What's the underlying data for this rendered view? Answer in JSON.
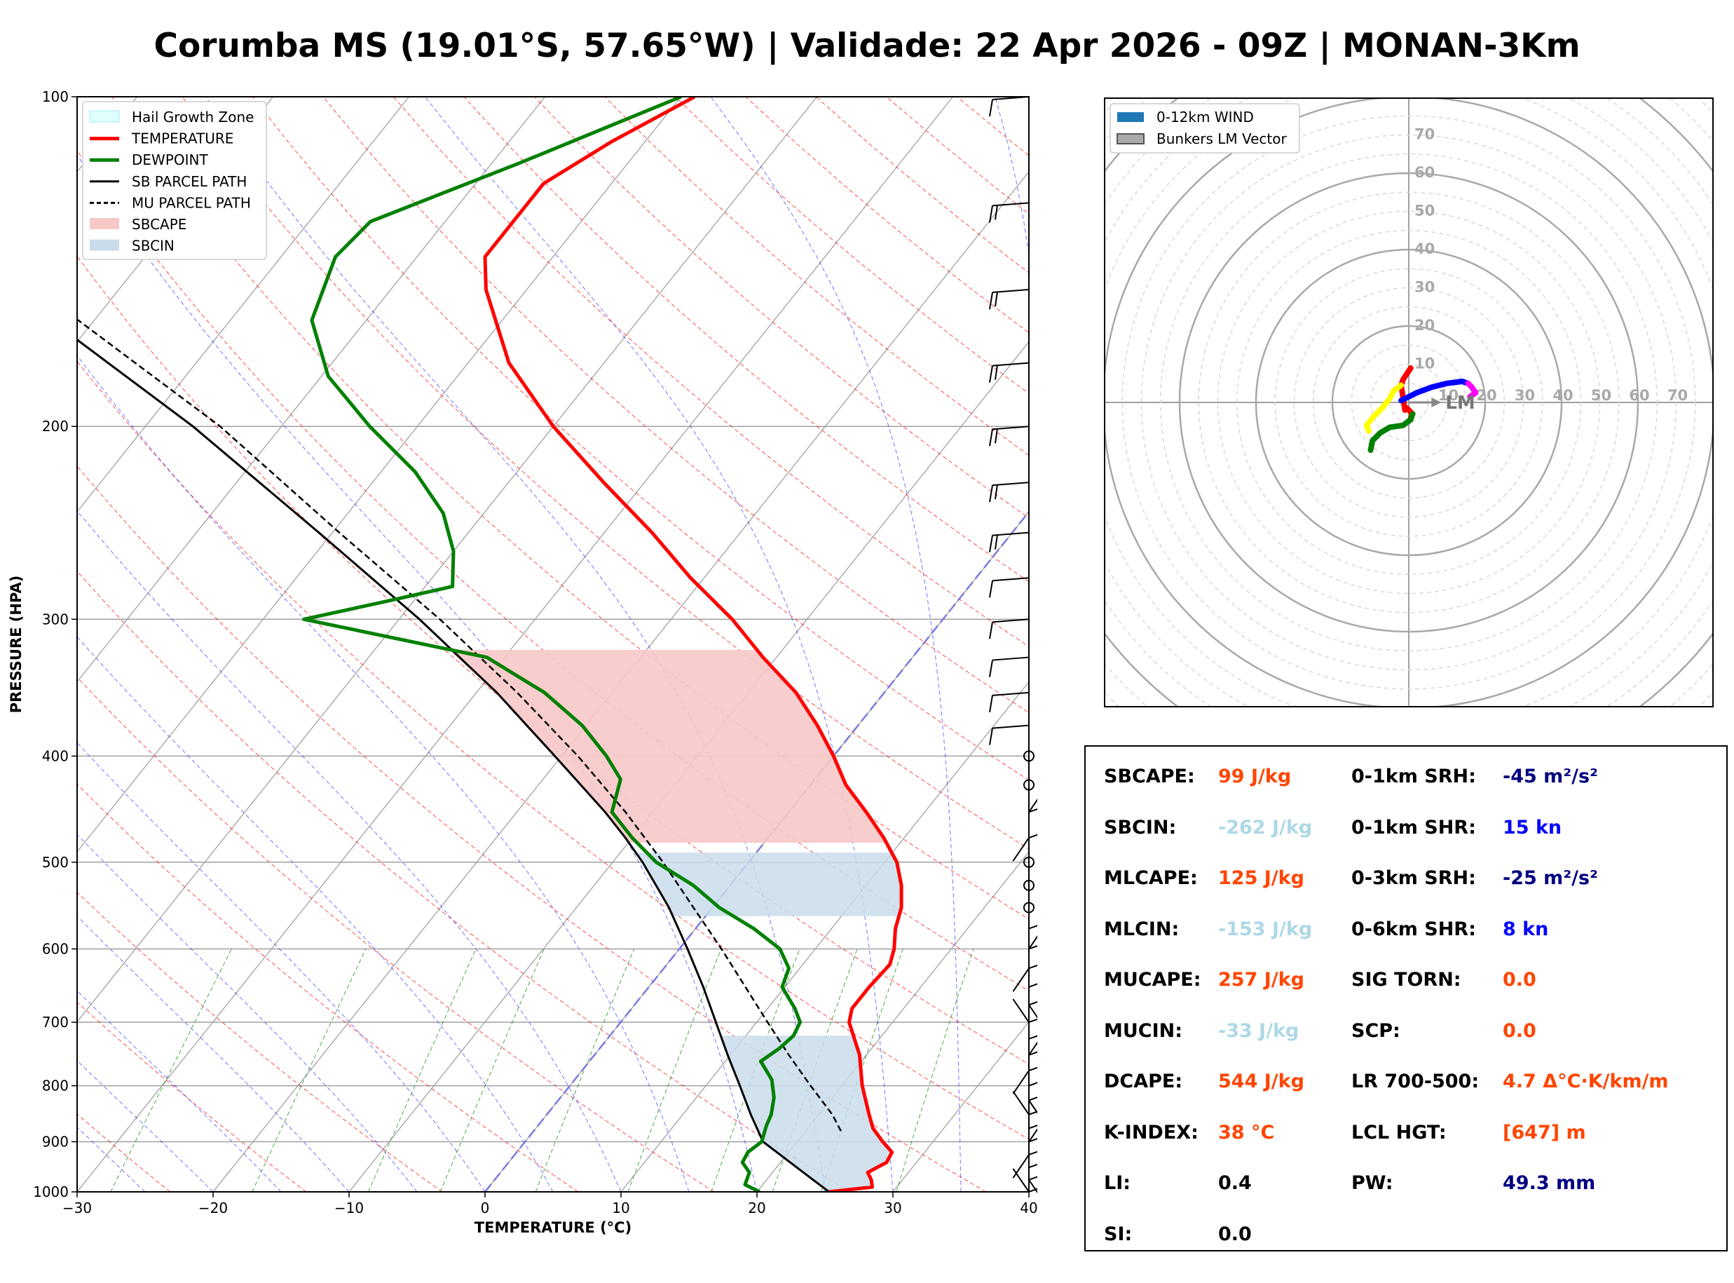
{
  "title": "Corumba MS (19.01°S, 57.65°W) | Validade: 22 Apr 2026 - 09Z | MONAN-3Km",
  "colors": {
    "temperature": "#ff0000",
    "dewpoint": "#008000",
    "sb_parcel": "#000000",
    "mu_parcel": "#000000",
    "sbcape": "#f7c8c8",
    "sbcin": "#c9dceb",
    "hail_growth_zone": "#e0ffff",
    "freezing_line": "#7a7ae0",
    "dry_adiabat": "#ff0000",
    "moist_adiabat": "#0000ff",
    "mixing_ratio": "#008000",
    "param_label": "#000000",
    "param_orange": "#ff4500",
    "param_lightblue": "#add8e6",
    "param_navy": "#000080",
    "param_blue": "#0000ff"
  },
  "chart_data": [
    {
      "type": "line",
      "subtype": "skew-T log-P diagram",
      "xlabel": "TEMPERATURE (°C)",
      "ylabel": "PRESSURE (HPA)",
      "xlim": [
        -30,
        40
      ],
      "ylim": [
        1000,
        100
      ],
      "y_scale": "log",
      "x_ticks": [
        "−30",
        "−20",
        "−10",
        "0",
        "10",
        "20",
        "30",
        "40"
      ],
      "y_ticks": [
        "1000",
        "900",
        "800",
        "700",
        "600",
        "500",
        "400",
        "300",
        "200",
        "100"
      ],
      "legend": {
        "placement": "top-left",
        "entries": [
          {
            "label": "Hail Growth Zone",
            "key": "hail"
          },
          {
            "label": "TEMPERATURE",
            "key": "temp"
          },
          {
            "label": "DEWPOINT",
            "key": "dewp"
          },
          {
            "label": "SB PARCEL PATH",
            "key": "sb"
          },
          {
            "label": "MU PARCEL PATH",
            "key": "mu"
          },
          {
            "label": "SBCAPE",
            "key": "sbcape"
          },
          {
            "label": "SBCIN",
            "key": "sbcin"
          }
        ]
      },
      "series": [
        {
          "name": "TEMPERATURE",
          "points": [
            [
              1000,
              25.3
            ],
            [
              990,
              28.2
            ],
            [
              975,
              27.7
            ],
            [
              960,
              27.0
            ],
            [
              940,
              27.8
            ],
            [
              920,
              27.6
            ],
            [
              900,
              26.3
            ],
            [
              875,
              24.8
            ],
            [
              850,
              23.7
            ],
            [
              800,
              21.5
            ],
            [
              750,
              19.5
            ],
            [
              700,
              16.8
            ],
            [
              680,
              16.2
            ],
            [
              650,
              16.2
            ],
            [
              620,
              16.4
            ],
            [
              600,
              15.8
            ],
            [
              575,
              14.7
            ],
            [
              550,
              13.9
            ],
            [
              525,
              12.6
            ],
            [
              500,
              10.9
            ],
            [
              475,
              8.5
            ],
            [
              450,
              5.7
            ],
            [
              425,
              2.6
            ],
            [
              400,
              0.0
            ],
            [
              375,
              -3.0
            ],
            [
              350,
              -6.5
            ],
            [
              325,
              -11.0
            ],
            [
              300,
              -15.5
            ],
            [
              275,
              -21.0
            ],
            [
              250,
              -26.5
            ],
            [
              225,
              -33.0
            ],
            [
              200,
              -40.0
            ],
            [
              175,
              -47.0
            ],
            [
              150,
              -53.0
            ],
            [
              140,
              -55.0
            ],
            [
              130,
              -55.0
            ],
            [
              120,
              -55.0
            ],
            [
              110,
              -52.5
            ],
            [
              100,
              -49.0
            ]
          ]
        },
        {
          "name": "DEWPOINT",
          "points": [
            [
              1000,
              20.2
            ],
            [
              985,
              18.7
            ],
            [
              960,
              18.3
            ],
            [
              940,
              17.2
            ],
            [
              920,
              17.0
            ],
            [
              900,
              17.4
            ],
            [
              870,
              16.8
            ],
            [
              850,
              16.5
            ],
            [
              820,
              15.7
            ],
            [
              790,
              14.5
            ],
            [
              760,
              12.6
            ],
            [
              740,
              13.2
            ],
            [
              720,
              13.5
            ],
            [
              700,
              13.2
            ],
            [
              680,
              12.0
            ],
            [
              650,
              9.8
            ],
            [
              625,
              9.2
            ],
            [
              600,
              7.4
            ],
            [
              575,
              4.3
            ],
            [
              550,
              0.5
            ],
            [
              525,
              -2.7
            ],
            [
              500,
              -6.8
            ],
            [
              475,
              -10.0
            ],
            [
              450,
              -13.0
            ],
            [
              420,
              -14.3
            ],
            [
              400,
              -16.7
            ],
            [
              375,
              -20.3
            ],
            [
              350,
              -25.0
            ],
            [
              325,
              -31.3
            ],
            [
              300,
              -47.0
            ],
            [
              290,
              -42.5
            ],
            [
              280,
              -38.0
            ],
            [
              260,
              -40.0
            ],
            [
              240,
              -43.0
            ],
            [
              220,
              -47.5
            ],
            [
              200,
              -53.5
            ],
            [
              180,
              -59.5
            ],
            [
              160,
              -64.0
            ],
            [
              140,
              -66.0
            ],
            [
              130,
              -65.5
            ],
            [
              115,
              -58.0
            ],
            [
              100,
              -50.0
            ]
          ]
        },
        {
          "name": "SB PARCEL PATH",
          "points": [
            [
              1000,
              25.3
            ],
            [
              950,
              21.5
            ],
            [
              900,
              17.5
            ],
            [
              850,
              15.0
            ],
            [
              800,
              12.5
            ],
            [
              750,
              9.8
            ],
            [
              700,
              7.0
            ],
            [
              650,
              4.0
            ],
            [
              600,
              0.6
            ],
            [
              550,
              -3.2
            ],
            [
              500,
              -7.8
            ],
            [
              475,
              -10.5
            ],
            [
              450,
              -13.5
            ],
            [
              400,
              -20.5
            ],
            [
              350,
              -28.5
            ],
            [
              300,
              -38.5
            ],
            [
              250,
              -51.0
            ],
            [
              200,
              -66.5
            ],
            [
              150,
              -88.0
            ],
            [
              100,
              -122.0
            ]
          ]
        },
        {
          "name": "MU PARCEL PATH",
          "points": [
            [
              880,
              22.6
            ],
            [
              850,
              21.0
            ],
            [
              800,
              17.7
            ],
            [
              750,
              14.3
            ],
            [
              700,
              10.8
            ],
            [
              650,
              7.1
            ],
            [
              600,
              3.1
            ],
            [
              550,
              -1.4
            ],
            [
              500,
              -6.3
            ],
            [
              450,
              -12.0
            ],
            [
              400,
              -18.8
            ],
            [
              350,
              -27.0
            ],
            [
              300,
              -37.0
            ],
            [
              250,
              -49.5
            ],
            [
              200,
              -64.5
            ],
            [
              150,
              -86.0
            ],
            [
              100,
              -120.0
            ]
          ]
        }
      ],
      "wind_barbs_pressure_hpa": [
        100,
        125,
        150,
        175,
        200,
        225,
        250,
        275,
        300,
        325,
        350,
        375,
        400,
        425,
        450,
        475,
        500,
        525,
        550,
        575,
        600,
        625,
        650,
        675,
        700,
        725,
        750,
        775,
        800,
        825,
        850,
        875,
        900,
        925,
        950,
        975,
        1000
      ]
    },
    {
      "type": "line",
      "subtype": "hodograph",
      "rings": [
        10,
        20,
        30,
        40,
        50,
        60,
        70
      ],
      "ring_labels": [
        "10",
        "20",
        "30",
        "40",
        "50",
        "60",
        "70"
      ],
      "legend": {
        "placement": "top-left",
        "entries": [
          {
            "label": "0-12km WIND"
          },
          {
            "label": "Bunkers LM Vector"
          }
        ]
      },
      "storm_motion_label": "LM",
      "storm_motion_uv": [
        8.5,
        0.0
      ],
      "segments": [
        {
          "name": "0-1km",
          "color": "#ff0000",
          "points": [
            [
              0.5,
              9
            ],
            [
              -0.5,
              7.5
            ],
            [
              -1.5,
              6.0
            ],
            [
              -2.0,
              4.5
            ],
            [
              -1.0,
              -2.0
            ],
            [
              -0.5,
              -1.5
            ],
            [
              1.0,
              -3.0
            ],
            [
              0.5,
              -4.0
            ]
          ]
        },
        {
          "name": "1-3km",
          "color": "#ffff00",
          "points": [
            [
              -2.0,
              4.5
            ],
            [
              -4.0,
              3.0
            ],
            [
              -5.0,
              1.0
            ],
            [
              -7.0,
              -1.5
            ],
            [
              -9.5,
              -4.0
            ],
            [
              -11.0,
              -6.0
            ],
            [
              -10.5,
              -7.5
            ]
          ]
        },
        {
          "name": "3-6km",
          "color": "#008000",
          "points": [
            [
              1.0,
              -3.0
            ],
            [
              0.5,
              -4.5
            ],
            [
              -1.5,
              -6.0
            ],
            [
              -5.0,
              -6.5
            ],
            [
              -7.5,
              -8.0
            ],
            [
              -9.5,
              -10.0
            ],
            [
              -10.0,
              -12.5
            ]
          ]
        },
        {
          "name": "6-9km",
          "color": "#0000ff",
          "points": [
            [
              -2.0,
              0.5
            ],
            [
              2.0,
              2.5
            ],
            [
              6.0,
              4.0
            ],
            [
              10.0,
              5.0
            ],
            [
              14.0,
              5.5
            ],
            [
              15.5,
              5.0
            ]
          ]
        },
        {
          "name": "9-12km",
          "color": "#ff00ff",
          "points": [
            [
              15.5,
              5.0
            ],
            [
              16.5,
              4.0
            ],
            [
              17.5,
              2.5
            ],
            [
              16.0,
              1.5
            ]
          ]
        }
      ]
    }
  ],
  "params": {
    "left": [
      {
        "label": "SBCAPE:",
        "value": "99 J/kg",
        "color": "#ff4500"
      },
      {
        "label": "SBCIN:",
        "value": "-262 J/kg",
        "color": "#add8e6"
      },
      {
        "label": "MLCAPE:",
        "value": "125 J/kg",
        "color": "#ff4500"
      },
      {
        "label": "MLCIN:",
        "value": "-153 J/kg",
        "color": "#add8e6"
      },
      {
        "label": "MUCAPE:",
        "value": "257 J/kg",
        "color": "#ff4500"
      },
      {
        "label": "MUCIN:",
        "value": "-33 J/kg",
        "color": "#add8e6"
      },
      {
        "label": "DCAPE:",
        "value": "544 J/kg",
        "color": "#ff4500"
      },
      {
        "label": "K-INDEX:",
        "value": "38 °C",
        "color": "#ff4500"
      },
      {
        "label": "LI:",
        "value": "0.4",
        "color": "#000000"
      },
      {
        "label": "SI:",
        "value": "0.0",
        "color": "#000000"
      }
    ],
    "right": [
      {
        "label": "0-1km SRH:",
        "value": "-45 m²/s²",
        "color": "#000080"
      },
      {
        "label": "0-1km SHR:",
        "value": "15 kn",
        "color": "#0000ff"
      },
      {
        "label": "0-3km SRH:",
        "value": "-25 m²/s²",
        "color": "#000080"
      },
      {
        "label": "0-6km SHR:",
        "value": "8 kn",
        "color": "#0000ff"
      },
      {
        "label": "SIG TORN:",
        "value": "0.0",
        "color": "#ff4500"
      },
      {
        "label": "SCP:",
        "value": "0.0",
        "color": "#ff4500"
      },
      {
        "label": "LR 700-500:",
        "value": "4.7 Δ°C·K/km/m",
        "color": "#ff4500"
      },
      {
        "label": "LCL HGT:",
        "value": "[647] m",
        "color": "#ff4500"
      },
      {
        "label": "PW:",
        "value": "49.3 mm",
        "color": "#000080"
      }
    ]
  }
}
